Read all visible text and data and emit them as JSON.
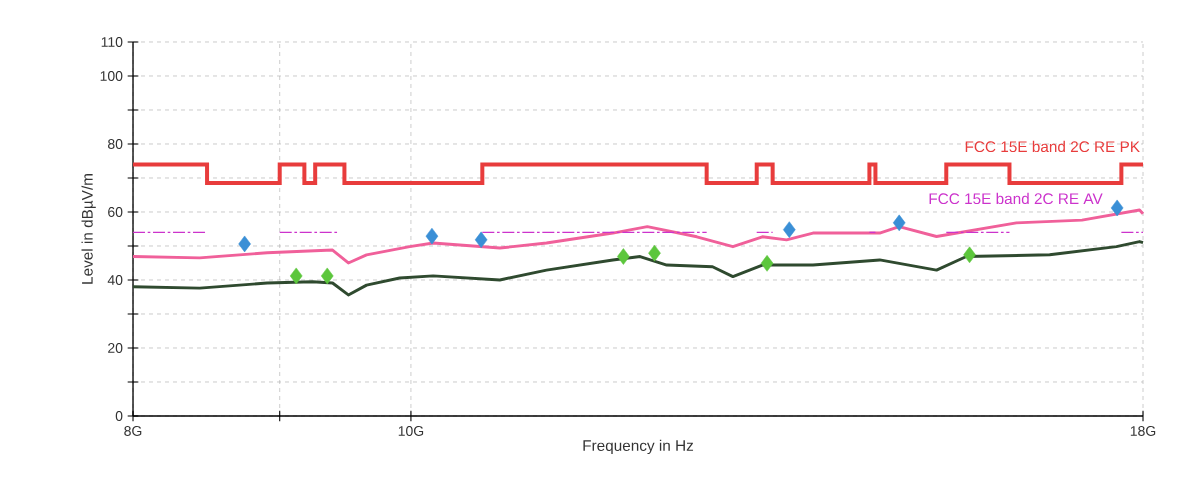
{
  "chart_data": {
    "type": "line",
    "xlabel": "Frequency in Hz",
    "ylabel": "Level in dBµV/m",
    "log": "x",
    "grid": true,
    "xlim": [
      8.0,
      18.0
    ],
    "xticks": [
      {
        "value": 8,
        "label": "8G"
      },
      {
        "value": 9,
        "label": null
      },
      {
        "value": 10,
        "label": "10G"
      },
      {
        "value": 18,
        "label": "18G"
      }
    ],
    "ylim": [
      0,
      110
    ],
    "yticks": [
      0,
      {
        "value": 10,
        "label": null
      },
      20,
      {
        "value": 30,
        "label": null
      },
      40,
      {
        "value": 50,
        "label": null
      },
      60,
      {
        "value": 70,
        "label": null
      },
      80,
      {
        "value": 90,
        "label": null
      },
      100,
      110
    ],
    "series": [
      {
        "color": "#f0609a",
        "marker": "none",
        "x": [
          8.0,
          8.44,
          8.91,
          9.39,
          9.51,
          9.65,
          9.99,
          10.18,
          10.74,
          11.15,
          11.76,
          12.09,
          12.58,
          12.95,
          13.26,
          13.52,
          13.81,
          14.57,
          14.8,
          15.25,
          16.26,
          17.14,
          17.95,
          18.0
        ],
        "values": [
          46.9,
          46.5,
          48,
          48.8,
          45,
          47.4,
          49.8,
          50.9,
          49.4,
          50.9,
          53.8,
          55.7,
          52.7,
          49.8,
          52.7,
          51.8,
          53.8,
          53.8,
          55.7,
          52.8,
          56.8,
          57.6,
          60.6,
          59.5
        ]
      },
      {
        "color": "#2f4a2f",
        "marker": "none",
        "x": [
          8.0,
          8.44,
          8.91,
          9.24,
          9.39,
          9.51,
          9.65,
          9.91,
          10.18,
          10.74,
          11.15,
          11.76,
          12.02,
          12.28,
          12.74,
          12.95,
          13.26,
          13.81,
          14.57,
          15.25,
          15.62,
          16.7,
          17.62,
          17.95,
          18.0
        ],
        "values": [
          38.0,
          37.6,
          39.1,
          39.5,
          39.1,
          35.6,
          38.5,
          40.6,
          41.2,
          40,
          42.9,
          45.9,
          46.9,
          44.4,
          43.9,
          41,
          44.4,
          44.4,
          45.9,
          42.9,
          46.9,
          47.4,
          49.8,
          51.3,
          51
        ]
      },
      {
        "type": "step",
        "name": "FCC 15E band 2C RE PK",
        "color": "#e83c3c",
        "marker": "none",
        "x": [
          8.0,
          8.49,
          9.0,
          9.18,
          9.26,
          9.48,
          10.59,
          12.68,
          13.2,
          13.37,
          14.45,
          14.52,
          15.37,
          16.17,
          17.69,
          18.0
        ],
        "values": [
          74,
          68.5,
          74,
          68.5,
          74,
          68.5,
          74,
          68.5,
          74,
          68.5,
          74,
          68.5,
          74,
          68.5,
          74,
          74
        ]
      },
      {
        "name": "FCC 15E band 2C RE AV",
        "color": "#cc33cc",
        "marker": "none",
        "line_style": "dashed",
        "x": [
          8.0,
          8.49,
          8.7,
          9.0,
          9.44,
          9.6,
          10.59,
          12.68,
          12.9,
          13.2,
          13.37,
          13.9,
          14.45,
          14.52,
          14.9,
          15.37,
          16.17,
          16.9,
          17.69,
          18.0
        ],
        "values": [
          54,
          54,
          null,
          54,
          54,
          null,
          54,
          54,
          null,
          54,
          54,
          null,
          54,
          54,
          null,
          54,
          54,
          null,
          54,
          54
        ]
      },
      {
        "type": "scatter",
        "color": "#3a8fd6",
        "marker": "diamond",
        "x": [
          8.75,
          10.17,
          10.58,
          13.55,
          14.8,
          17.63
        ],
        "values": [
          50.6,
          52.9,
          51.8,
          54.8,
          56.8,
          61.2
        ]
      },
      {
        "type": "scatter",
        "color": "#5cc63c",
        "marker": "diamond",
        "x": [
          9.12,
          9.35,
          11.86,
          12.16,
          13.31,
          15.66
        ],
        "values": [
          41.2,
          41.2,
          46.9,
          47.9,
          44.9,
          47.4
        ]
      }
    ]
  }
}
